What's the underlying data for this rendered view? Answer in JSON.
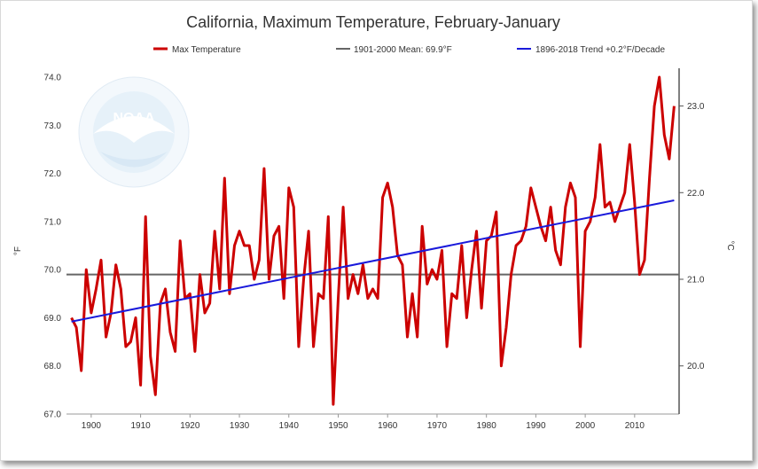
{
  "chart_data": {
    "type": "line",
    "title": "California, Maximum Temperature, February-January",
    "ylabel": "°F",
    "ylabel_right": "°C",
    "ylim": [
      67.0,
      74.0
    ],
    "xlim": [
      1895,
      2019
    ],
    "grid": false,
    "legend_position": "top",
    "y_ticks": [
      "67.0",
      "68.0",
      "69.0",
      "70.0",
      "71.0",
      "72.0",
      "73.0",
      "74.0"
    ],
    "x_ticks": [
      "1900",
      "1910",
      "1920",
      "1930",
      "1940",
      "1950",
      "1960",
      "1970",
      "1980",
      "1990",
      "2000",
      "2010"
    ],
    "y_right_ticks": [
      "20.0",
      "21.0",
      "22.0",
      "23.0"
    ],
    "colors": {
      "max_temp": "#cc0000",
      "mean": "#666666",
      "trend": "#1a1adb"
    },
    "series": [
      {
        "name": "Max Temperature",
        "x": [
          1896,
          1897,
          1898,
          1899,
          1900,
          1901,
          1902,
          1903,
          1904,
          1905,
          1906,
          1907,
          1908,
          1909,
          1910,
          1911,
          1912,
          1913,
          1914,
          1915,
          1916,
          1917,
          1918,
          1919,
          1920,
          1921,
          1922,
          1923,
          1924,
          1925,
          1926,
          1927,
          1928,
          1929,
          1930,
          1931,
          1932,
          1933,
          1934,
          1935,
          1936,
          1937,
          1938,
          1939,
          1940,
          1941,
          1942,
          1943,
          1944,
          1945,
          1946,
          1947,
          1948,
          1949,
          1950,
          1951,
          1952,
          1953,
          1954,
          1955,
          1956,
          1957,
          1958,
          1959,
          1960,
          1961,
          1962,
          1963,
          1964,
          1965,
          1966,
          1967,
          1968,
          1969,
          1970,
          1971,
          1972,
          1973,
          1974,
          1975,
          1976,
          1977,
          1978,
          1979,
          1980,
          1981,
          1982,
          1983,
          1984,
          1985,
          1986,
          1987,
          1988,
          1989,
          1990,
          1991,
          1992,
          1993,
          1994,
          1995,
          1996,
          1997,
          1998,
          1999,
          2000,
          2001,
          2002,
          2003,
          2004,
          2005,
          2006,
          2007,
          2008,
          2009,
          2010,
          2011,
          2012,
          2013,
          2014,
          2015,
          2016,
          2017,
          2018
        ],
        "values": [
          69.0,
          68.8,
          67.9,
          70.0,
          69.1,
          69.6,
          70.2,
          68.6,
          69.1,
          70.1,
          69.6,
          68.4,
          68.5,
          69.0,
          67.6,
          71.1,
          68.2,
          67.4,
          69.3,
          69.6,
          68.7,
          68.3,
          70.6,
          69.4,
          69.5,
          68.3,
          69.9,
          69.1,
          69.3,
          70.8,
          69.6,
          71.9,
          69.5,
          70.5,
          70.8,
          70.5,
          70.5,
          69.8,
          70.2,
          72.1,
          69.8,
          70.7,
          70.9,
          69.4,
          71.7,
          71.3,
          68.4,
          69.8,
          70.8,
          68.4,
          69.5,
          69.4,
          71.1,
          67.2,
          69.4,
          71.3,
          69.4,
          69.9,
          69.5,
          70.1,
          69.4,
          69.6,
          69.4,
          71.5,
          71.8,
          71.3,
          70.3,
          70.1,
          68.6,
          69.5,
          68.6,
          70.9,
          69.7,
          70.0,
          69.8,
          70.4,
          68.4,
          69.5,
          69.4,
          70.5,
          69.0,
          70.0,
          70.8,
          69.2,
          70.6,
          70.7,
          71.2,
          68.0,
          68.8,
          69.9,
          70.5,
          70.6,
          70.9,
          71.7,
          71.3,
          70.9,
          70.6,
          71.3,
          70.4,
          70.1,
          71.3,
          71.8,
          71.5,
          68.4,
          70.8,
          71.0,
          71.5,
          72.6,
          71.3,
          71.4,
          71.0,
          71.3,
          71.6,
          72.6,
          71.4,
          69.9,
          70.2,
          71.9,
          73.4,
          74.0,
          72.8,
          72.3,
          73.4
        ]
      },
      {
        "name": "1901-2000 Mean: 69.9°F",
        "value": 69.9
      },
      {
        "name": "1896-2018 Trend +0.2°F/Decade",
        "x": [
          1896,
          2018
        ],
        "values": [
          68.92,
          71.44
        ]
      }
    ]
  },
  "logo": {
    "text": "NOAA",
    "ring_text_top": "NATIONAL OCEANIC AND ATMOSPHERIC ADMINISTRATION",
    "ring_text_bottom": "U.S. DEPARTMENT OF COMMERCE"
  }
}
